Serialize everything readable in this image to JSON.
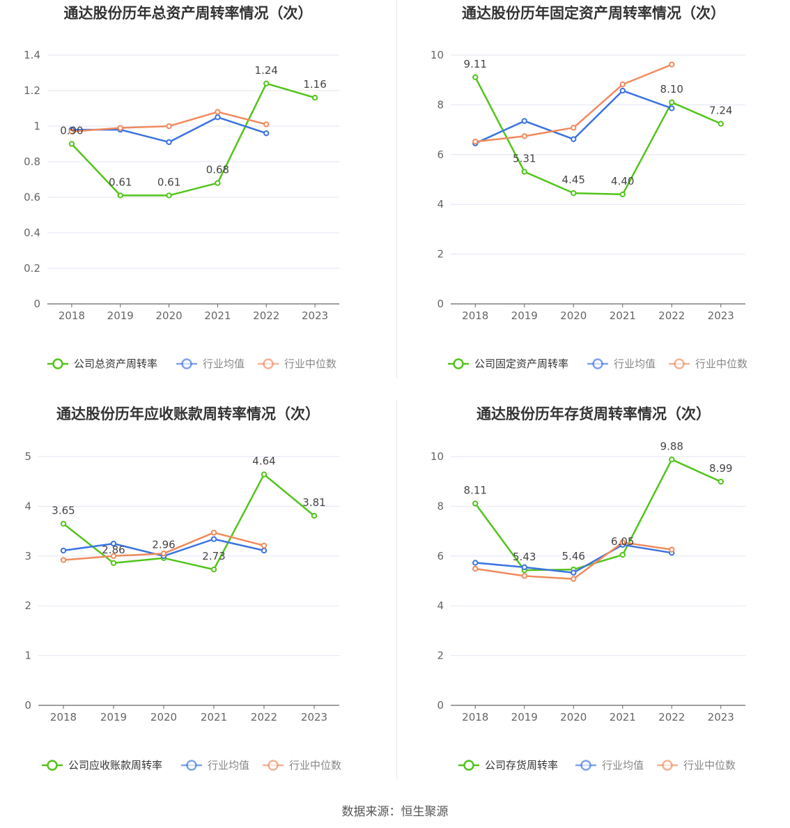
{
  "colors": {
    "company": "#52c41a",
    "avg": "#3b73e0",
    "median": "#f08a5d",
    "grid": "#e3e6f2",
    "axis": "#666666",
    "text": "#666666",
    "title": "#333333"
  },
  "source": "数据来源：恒生聚源",
  "chart_data": [
    {
      "type": "line",
      "title": "通达股份历年总资产周转率情况（次）",
      "categories": [
        "2018",
        "2019",
        "2020",
        "2021",
        "2022",
        "2023"
      ],
      "ylim": [
        0,
        1.4
      ],
      "yticks": [
        "0",
        "0.2",
        "0.4",
        "0.6",
        "0.8",
        "1",
        "1.2",
        "1.4"
      ],
      "legend": [
        "公司总资产周转率",
        "行业均值",
        "行业中位数"
      ],
      "series": [
        {
          "name": "公司总资产周转率",
          "values": [
            0.9,
            0.61,
            0.61,
            0.68,
            1.24,
            1.16
          ],
          "labels": [
            "0.90",
            "0.61",
            "0.61",
            "0.68",
            "1.24",
            "1.16"
          ]
        },
        {
          "name": "行业均值",
          "values": [
            0.98,
            0.98,
            0.91,
            1.05,
            0.96,
            null
          ]
        },
        {
          "name": "行业中位数",
          "values": [
            0.97,
            0.99,
            1.0,
            1.08,
            1.01,
            null
          ]
        }
      ]
    },
    {
      "type": "line",
      "title": "通达股份历年固定资产周转率情况（次）",
      "categories": [
        "2018",
        "2019",
        "2020",
        "2021",
        "2022",
        "2023"
      ],
      "ylim": [
        0,
        10
      ],
      "yticks": [
        "0",
        "2",
        "4",
        "6",
        "8",
        "10"
      ],
      "legend": [
        "公司固定资产周转率",
        "行业均值",
        "行业中位数"
      ],
      "series": [
        {
          "name": "公司固定资产周转率",
          "values": [
            9.11,
            5.31,
            4.45,
            4.4,
            8.1,
            7.24
          ],
          "labels": [
            "9.11",
            "5.31",
            "4.45",
            "4.40",
            "8.10",
            "7.24"
          ]
        },
        {
          "name": "行业均值",
          "values": [
            6.45,
            7.35,
            6.62,
            8.57,
            7.86,
            null
          ]
        },
        {
          "name": "行业中位数",
          "values": [
            6.52,
            6.74,
            7.08,
            8.82,
            9.62,
            null
          ]
        }
      ]
    },
    {
      "type": "line",
      "title": "通达股份历年应收账款周转率情况（次）",
      "categories": [
        "2018",
        "2019",
        "2020",
        "2021",
        "2022",
        "2023"
      ],
      "ylim": [
        0,
        5
      ],
      "yticks": [
        "0",
        "1",
        "2",
        "3",
        "4",
        "5"
      ],
      "legend": [
        "公司应收账款周转率",
        "行业均值",
        "行业中位数"
      ],
      "series": [
        {
          "name": "公司应收账款周转率",
          "values": [
            3.65,
            2.86,
            2.96,
            2.73,
            4.64,
            3.81
          ],
          "labels": [
            "3.65",
            "2.86",
            "2.96",
            "2.73",
            "4.64",
            "3.81"
          ]
        },
        {
          "name": "行业均值",
          "values": [
            3.11,
            3.25,
            3.0,
            3.34,
            3.11,
            null
          ]
        },
        {
          "name": "行业中位数",
          "values": [
            2.92,
            3.0,
            3.05,
            3.47,
            3.21,
            null
          ]
        }
      ]
    },
    {
      "type": "line",
      "title": "通达股份历年存货周转率情况（次）",
      "categories": [
        "2018",
        "2019",
        "2020",
        "2021",
        "2022",
        "2023"
      ],
      "ylim": [
        0,
        10
      ],
      "yticks": [
        "0",
        "2",
        "4",
        "6",
        "8",
        "10"
      ],
      "legend": [
        "公司存货周转率",
        "行业均值",
        "行业中位数"
      ],
      "series": [
        {
          "name": "公司存货周转率",
          "values": [
            8.11,
            5.43,
            5.46,
            6.05,
            9.88,
            8.99
          ],
          "labels": [
            "8.11",
            "5.43",
            "5.46",
            "6.05",
            "9.88",
            "8.99"
          ]
        },
        {
          "name": "行业均值",
          "values": [
            5.73,
            5.55,
            5.33,
            6.45,
            6.13,
            null
          ]
        },
        {
          "name": "行业中位数",
          "values": [
            5.49,
            5.2,
            5.08,
            6.55,
            6.26,
            null
          ]
        }
      ]
    }
  ]
}
